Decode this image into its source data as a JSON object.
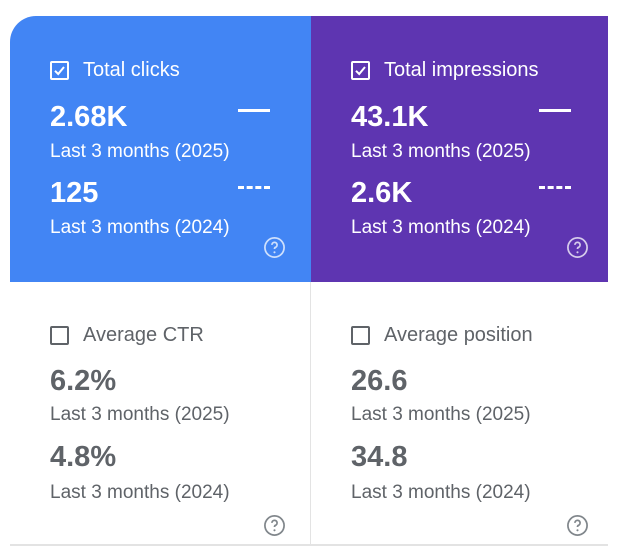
{
  "colors": {
    "clicks_bg": "#4285f4",
    "impressions_bg": "#5e35b1",
    "inactive_text": "#5f6368",
    "divider": "#e3e3e3"
  },
  "cards": [
    {
      "name": "Total clicks",
      "checked": true,
      "current_value": "2.68K",
      "current_period": "Last 3 months (2025)",
      "previous_value": "125",
      "previous_period": "Last 3 months (2024)",
      "help_icon": "help-circle-icon"
    },
    {
      "name": "Total impressions",
      "checked": true,
      "current_value": "43.1K",
      "current_period": "Last 3 months (2025)",
      "previous_value": "2.6K",
      "previous_period": "Last 3 months (2024)",
      "help_icon": "help-circle-icon"
    },
    {
      "name": "Average CTR",
      "checked": false,
      "current_value": "6.2%",
      "current_period": "Last 3 months (2025)",
      "previous_value": "4.8%",
      "previous_period": "Last 3 months (2024)",
      "help_icon": "help-circle-icon"
    },
    {
      "name": "Average position",
      "checked": false,
      "current_value": "26.6",
      "current_period": "Last 3 months (2025)",
      "previous_value": "34.8",
      "previous_period": "Last 3 months (2024)",
      "help_icon": "help-circle-icon"
    }
  ]
}
